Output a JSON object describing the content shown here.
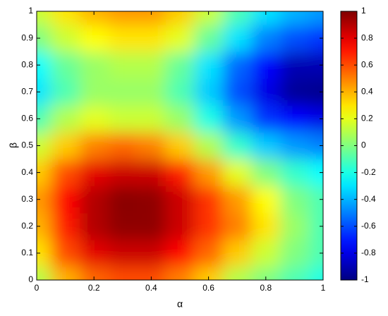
{
  "chart_data": {
    "type": "heatmap",
    "xlabel": "α",
    "ylabel": "β",
    "x": [
      0,
      0.1,
      0.2,
      0.3,
      0.4,
      0.5,
      0.6,
      0.7,
      0.8,
      0.9,
      1
    ],
    "y": [
      0,
      0.1,
      0.2,
      0.3,
      0.4,
      0.5,
      0.6,
      0.7,
      0.8,
      0.9,
      1
    ],
    "values": [
      [
        0.1,
        0.4,
        0.55,
        0.6,
        0.6,
        0.5,
        0.35,
        0.1,
        0,
        -0.1,
        -0.2
      ],
      [
        0.3,
        0.6,
        0.8,
        0.85,
        0.85,
        0.75,
        0.55,
        0.35,
        0.15,
        0,
        -0.1
      ],
      [
        0.4,
        0.7,
        0.9,
        0.97,
        0.97,
        0.85,
        0.65,
        0.5,
        0.3,
        0.05,
        -0.1
      ],
      [
        0.45,
        0.75,
        0.9,
        0.98,
        0.97,
        0.85,
        0.65,
        0.45,
        0.25,
        0,
        -0.1
      ],
      [
        0.35,
        0.6,
        0.8,
        0.85,
        0.85,
        0.7,
        0.45,
        0.2,
        0,
        -0.15,
        -0.25
      ],
      [
        0.15,
        0.35,
        0.5,
        0.55,
        0.5,
        0.35,
        0.1,
        -0.15,
        -0.35,
        -0.45,
        -0.5
      ],
      [
        -0.1,
        0.1,
        0.2,
        0.15,
        0.15,
        0.05,
        -0.2,
        -0.45,
        -0.65,
        -0.75,
        -0.8
      ],
      [
        -0.3,
        -0.1,
        0.05,
        0.05,
        0.05,
        -0.1,
        -0.35,
        -0.6,
        -0.8,
        -0.95,
        -0.97
      ],
      [
        -0.25,
        -0.05,
        0.05,
        0.1,
        0.1,
        -0.05,
        -0.3,
        -0.55,
        -0.75,
        -0.9,
        -0.9
      ],
      [
        0,
        0.15,
        0.25,
        0.3,
        0.3,
        0.2,
        -0.05,
        -0.3,
        -0.5,
        -0.6,
        -0.65
      ],
      [
        0.15,
        0.3,
        0.4,
        0.45,
        0.45,
        0.35,
        0.15,
        -0.1,
        -0.3,
        -0.4,
        -0.45
      ]
    ],
    "xlim": [
      0,
      1
    ],
    "xticks": [
      0,
      0.2,
      0.4,
      0.6,
      0.8,
      1
    ],
    "ylim": [
      0,
      1
    ],
    "yticks": [
      0,
      0.1,
      0.2,
      0.3,
      0.4,
      0.5,
      0.6,
      0.7,
      0.8,
      0.9,
      1
    ],
    "colormap": "jet",
    "clim": [
      -1,
      1
    ],
    "cticks": [
      -1,
      -0.8,
      -0.6,
      -0.4,
      -0.2,
      0,
      0.2,
      0.4,
      0.6,
      0.8,
      1
    ]
  }
}
